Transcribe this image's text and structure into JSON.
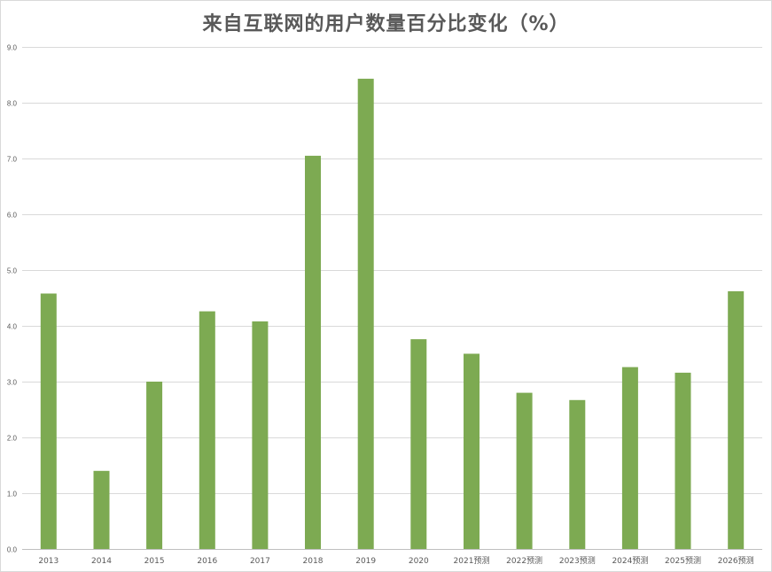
{
  "chart_data": {
    "type": "bar",
    "title": "来自互联网的用户数量百分比变化（%）",
    "xlabel": "",
    "ylabel": "",
    "categories": [
      "2013",
      "2014",
      "2015",
      "2016",
      "2017",
      "2018",
      "2019",
      "2020",
      "2021预测",
      "2022预测",
      "2023预测",
      "2024预测",
      "2025预测",
      "2026预测"
    ],
    "values": [
      4.58,
      1.4,
      3.0,
      4.26,
      4.08,
      7.05,
      8.43,
      3.76,
      3.5,
      2.8,
      2.67,
      3.26,
      3.16,
      4.62
    ],
    "ylim": [
      0,
      9
    ],
    "yticks": [
      "0.0",
      "1.0",
      "2.0",
      "3.0",
      "4.0",
      "5.0",
      "6.0",
      "7.0",
      "8.0",
      "9.0"
    ],
    "grid": true,
    "legend": "none",
    "bar_color": "#7daa52",
    "grid_color": "#d9d9d9"
  }
}
